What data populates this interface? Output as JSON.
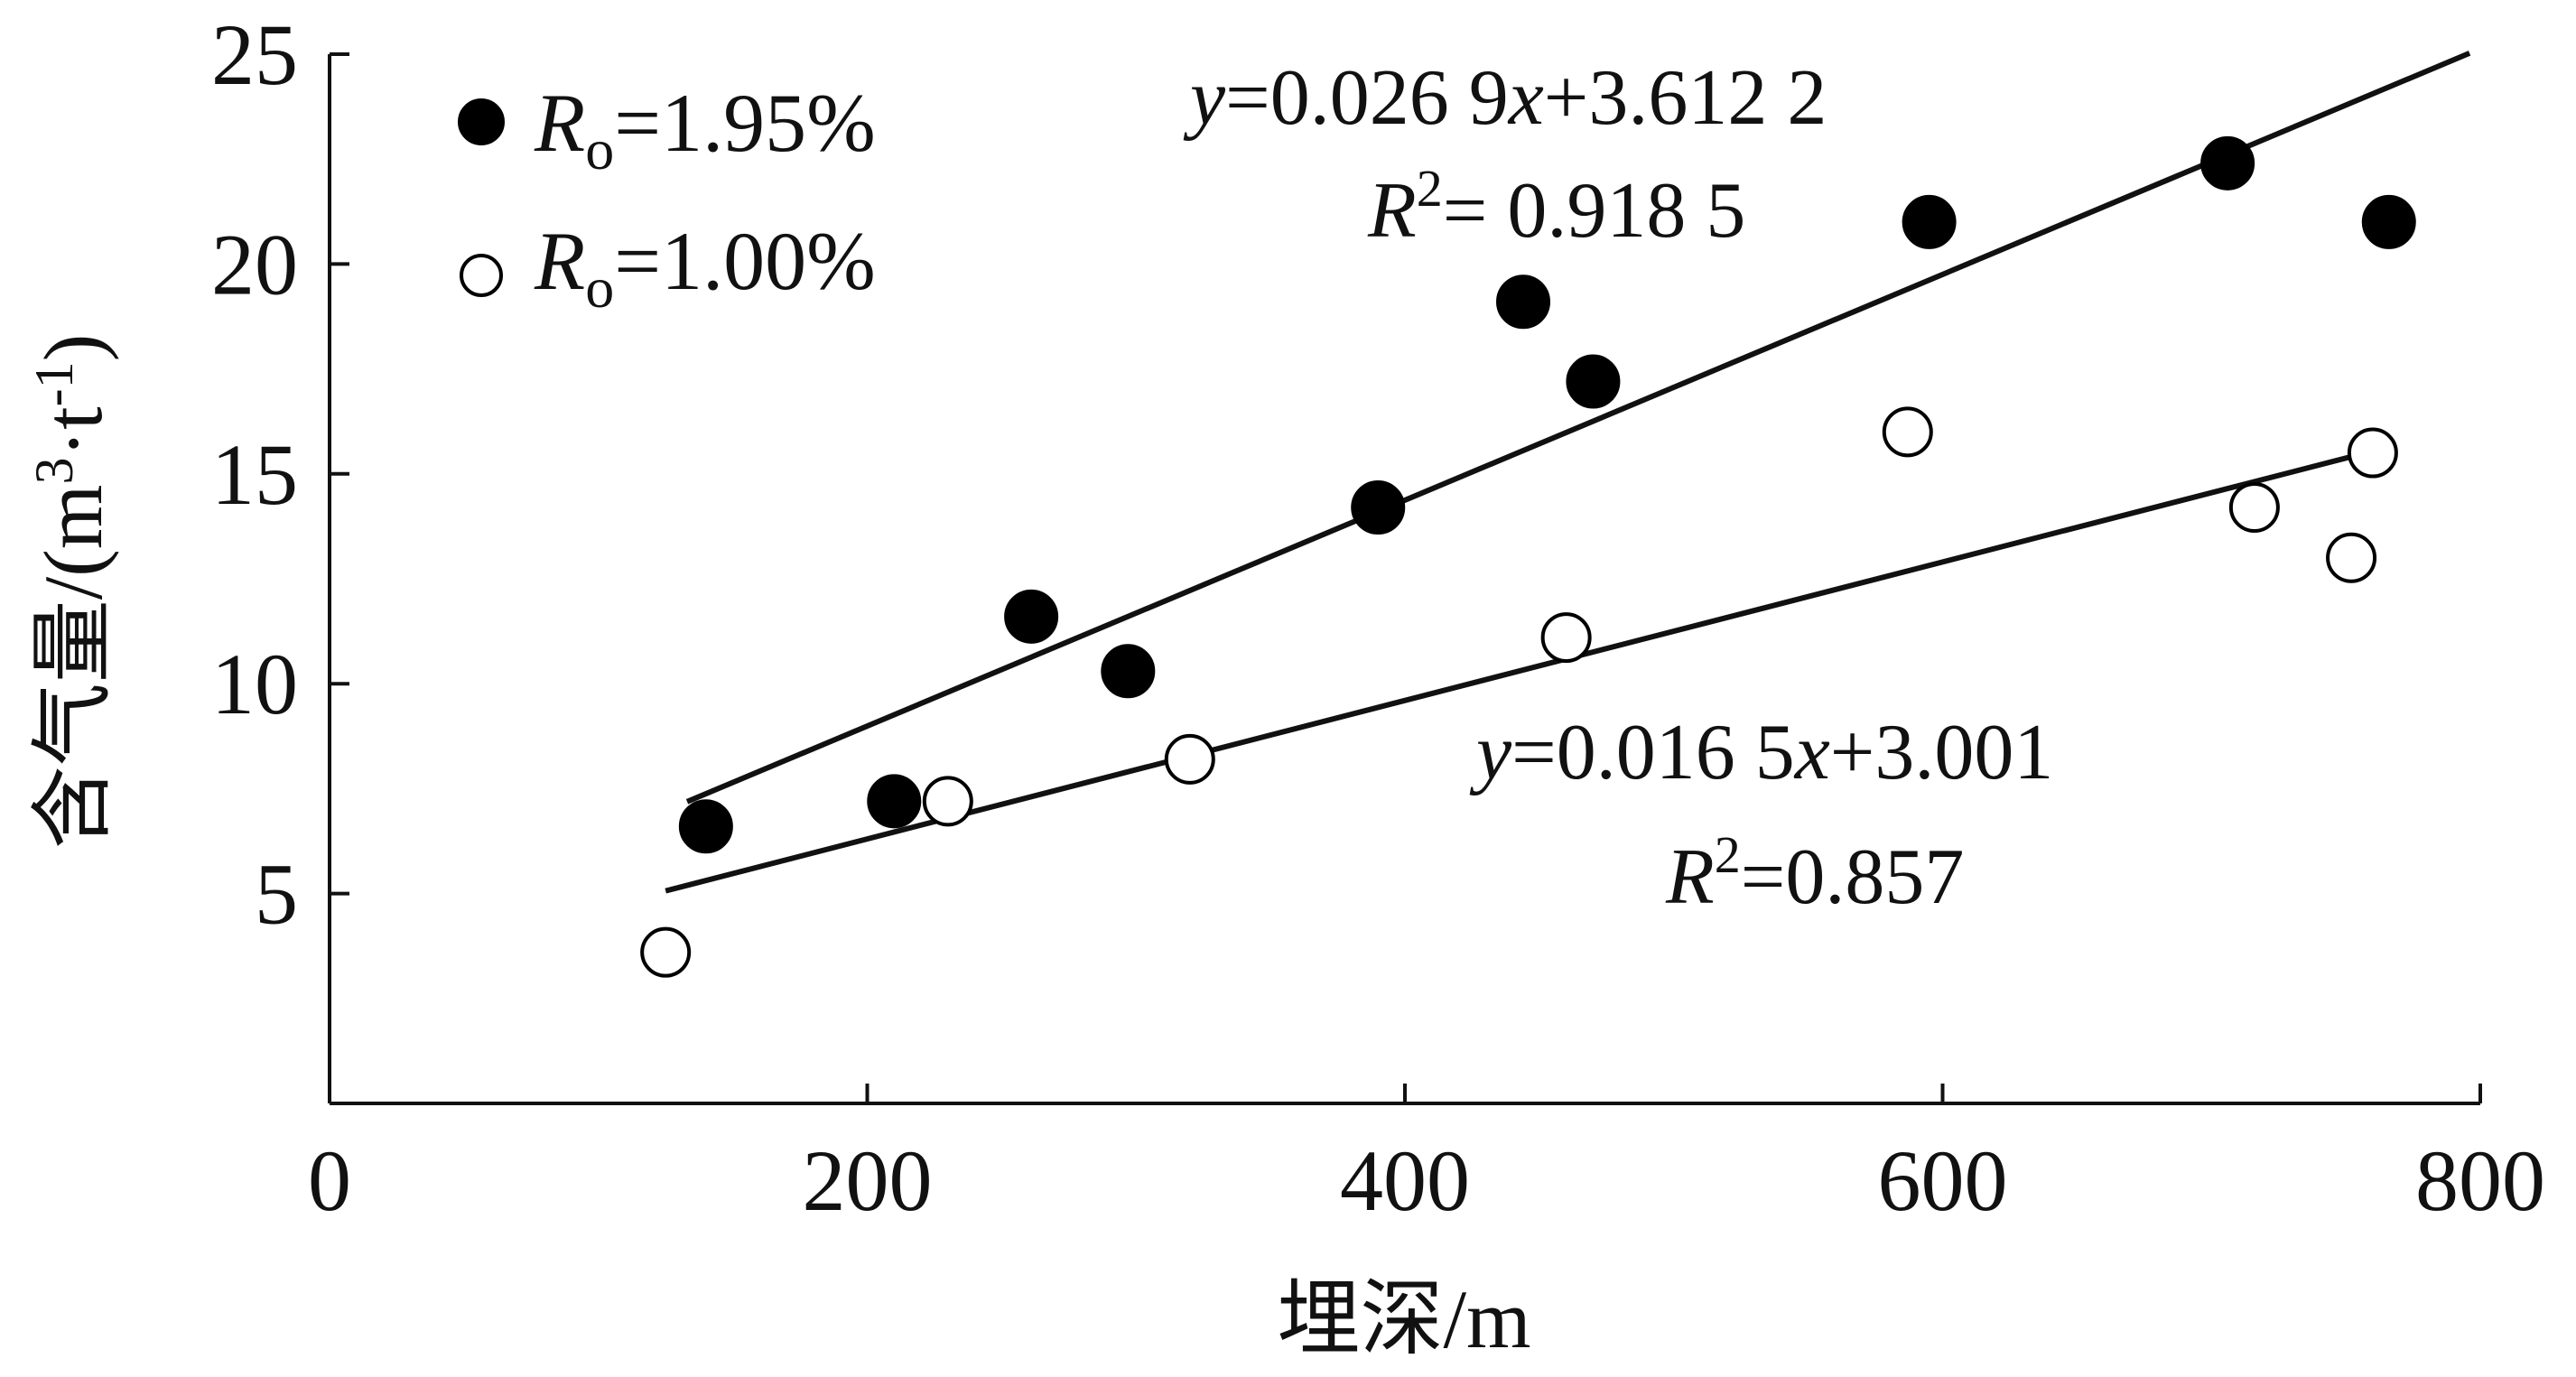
{
  "chart_data": {
    "type": "scatter",
    "xlabel": "埋深/m",
    "ylabel": "含气量/(m³·t⁻¹)",
    "ylabel_parts": {
      "main": "含气量/(m",
      "sup1": "3",
      "mid": "·t",
      "sup2": "-1",
      "end": ")"
    },
    "xlim": [
      0,
      800
    ],
    "ylim": [
      0,
      25
    ],
    "x_ticks": [
      0,
      200,
      400,
      600,
      800
    ],
    "y_ticks": [
      5,
      10,
      15,
      20,
      25
    ],
    "x_tick_labels": [
      "0",
      "200",
      "400",
      "600",
      "800"
    ],
    "y_tick_labels": [
      "5",
      "10",
      "15",
      "20",
      "25"
    ],
    "grid": false,
    "legend_position": "top-left",
    "series": [
      {
        "name": "Ro=1.95%",
        "label_main": "R",
        "label_sub": "o",
        "label_rest": "=1.95%",
        "marker": "filled-circle",
        "color": "#000000",
        "points": [
          [
            140,
            6.6
          ],
          [
            210,
            7.2
          ],
          [
            261,
            11.6
          ],
          [
            297,
            10.3
          ],
          [
            390,
            14.2
          ],
          [
            444,
            19.1
          ],
          [
            470,
            17.2
          ],
          [
            595,
            21.0
          ],
          [
            706,
            22.4
          ],
          [
            766,
            21.0
          ]
        ],
        "fit": {
          "slope": 0.0269,
          "intercept": 3.6122,
          "x_range": [
            133,
            796
          ],
          "eq_y": "y",
          "eq_mid": "=0.026 9",
          "eq_x": "x",
          "eq_end": "+3.612 2",
          "r2_main": "R",
          "r2_sup": "2",
          "r2_rest": "= 0.918 5"
        }
      },
      {
        "name": "Ro=1.00%",
        "label_main": "R",
        "label_sub": "o",
        "label_rest": "=1.00%",
        "marker": "open-circle",
        "color": "#000000",
        "points": [
          [
            125,
            3.6
          ],
          [
            230,
            7.2
          ],
          [
            320,
            8.2
          ],
          [
            460,
            11.1
          ],
          [
            587,
            16.0
          ],
          [
            716,
            14.2
          ],
          [
            752,
            13.0
          ],
          [
            760,
            15.5
          ]
        ],
        "fit": {
          "slope": 0.0165,
          "intercept": 3.001,
          "x_range": [
            125,
            760
          ],
          "eq_y": "y",
          "eq_mid": "=0.016 5",
          "eq_x": "x",
          "eq_end": "+3.001",
          "r2_main": "R",
          "r2_sup": "2",
          "r2_rest": "=0.857"
        }
      }
    ]
  }
}
